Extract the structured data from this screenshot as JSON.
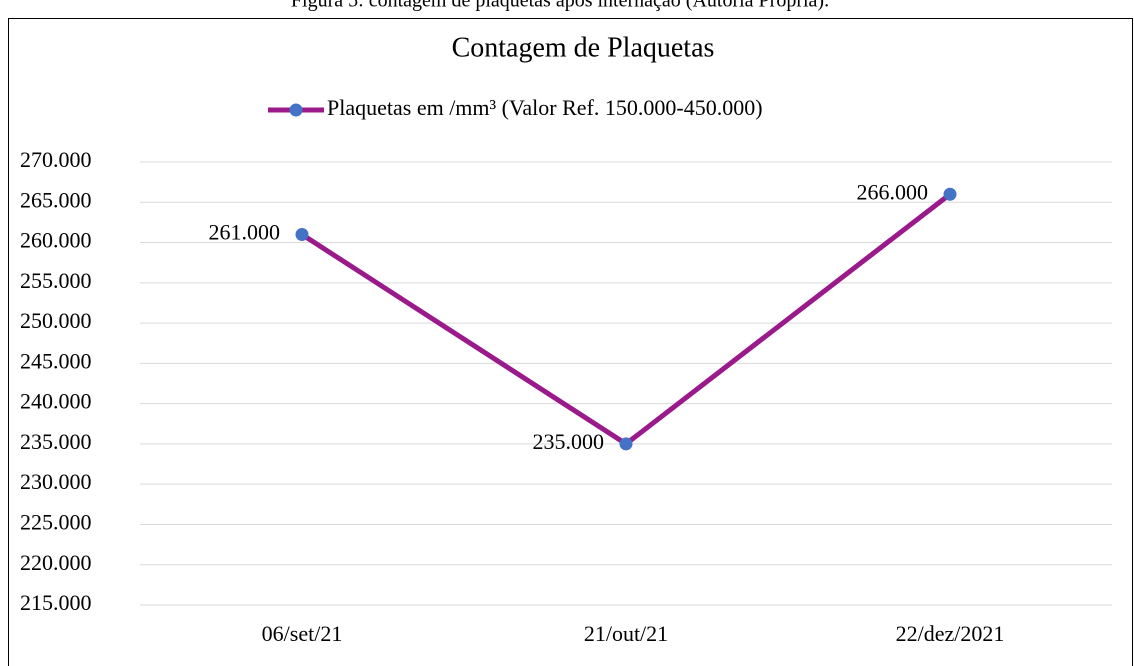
{
  "caption": "Figura 5: contagem de plaquetas após internação (Autoria Própria).",
  "chart_data": {
    "type": "line",
    "title": "Contagem de Plaquetas",
    "categories": [
      "06/set/21",
      "21/out/21",
      "22/dez/2021"
    ],
    "series": [
      {
        "name": "Plaquetas em /mm³ (Valor Ref. 150.000-450.000)",
        "color": "#9a1a8c",
        "marker_color": "#4472c4",
        "values": [
          261000,
          235000,
          266000
        ],
        "value_labels": [
          "261.000",
          "235.000",
          "266.000"
        ]
      }
    ],
    "ylim": [
      215000,
      270000
    ],
    "yticks": [
      {
        "value": 215000,
        "label": "215.000"
      },
      {
        "value": 220000,
        "label": "220.000"
      },
      {
        "value": 225000,
        "label": "225.000"
      },
      {
        "value": 230000,
        "label": "230.000"
      },
      {
        "value": 235000,
        "label": "235.000"
      },
      {
        "value": 240000,
        "label": "240.000"
      },
      {
        "value": 245000,
        "label": "245.000"
      },
      {
        "value": 250000,
        "label": "250.000"
      },
      {
        "value": 255000,
        "label": "255.000"
      },
      {
        "value": 260000,
        "label": "260.000"
      },
      {
        "value": 265000,
        "label": "265.000"
      },
      {
        "value": 270000,
        "label": "270.000"
      }
    ],
    "grid": true,
    "legend": "top"
  }
}
